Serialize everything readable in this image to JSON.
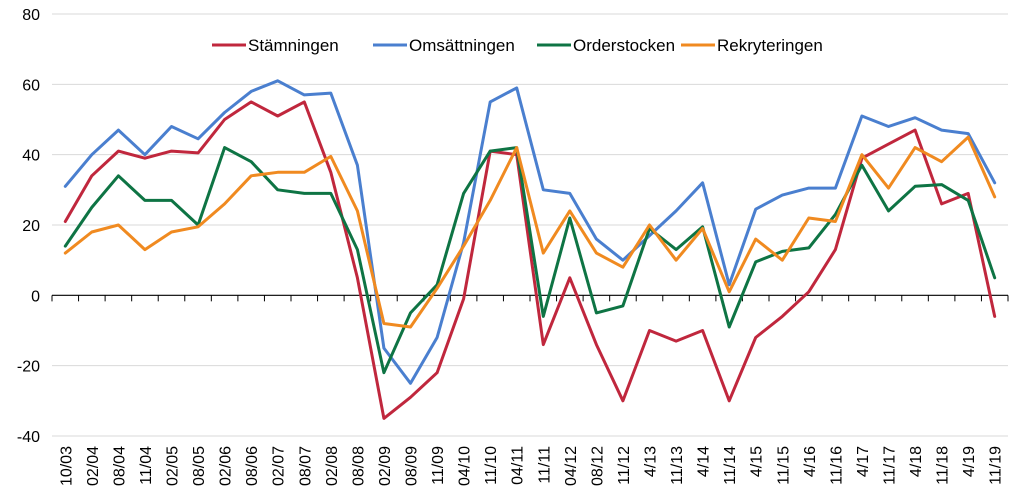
{
  "chart_data": {
    "type": "line",
    "title": "",
    "xlabel": "",
    "ylabel": "",
    "ylim": [
      -40,
      80
    ],
    "yticks": [
      -40,
      -20,
      0,
      20,
      40,
      60,
      80
    ],
    "grid": "horizontal",
    "legend_position": "top-center",
    "categories": [
      "10/03",
      "02/04",
      "08/04",
      "11/04",
      "02/05",
      "08/05",
      "02/06",
      "08/06",
      "02/07",
      "08/07",
      "02/08",
      "08/08",
      "02/09",
      "08/09",
      "11/09",
      "04/10",
      "11/10",
      "04/11",
      "11/11",
      "04/12",
      "08/12",
      "11/12",
      "4/13",
      "11/13",
      "4/14",
      "11/14",
      "4/15",
      "11/15",
      "4/16",
      "11/16",
      "4/17",
      "11/17",
      "4/18",
      "11/18",
      "4/19",
      "11/19"
    ],
    "series": [
      {
        "name": "Stämningen",
        "color": "#c0273d",
        "values": [
          21,
          34,
          41,
          39,
          41,
          40.5,
          50,
          55,
          51,
          55,
          35,
          5,
          -35,
          -29,
          -22,
          -1,
          41,
          40,
          -14,
          5,
          -14,
          -30,
          -10,
          -13,
          -10,
          -30,
          -12,
          -6,
          1,
          13,
          39,
          43,
          47,
          26,
          29,
          -6
        ]
      },
      {
        "name": "Omsättningen",
        "color": "#4a7fcf",
        "values": [
          31,
          40,
          47,
          40,
          48,
          44.5,
          52,
          58,
          61,
          57,
          57.5,
          37,
          -15,
          -25,
          -12,
          15,
          55,
          59,
          30,
          29,
          16,
          10,
          17,
          24,
          32,
          3,
          24.5,
          28.5,
          30.5,
          30.5,
          51,
          48,
          50.5,
          47,
          46,
          32
        ]
      },
      {
        "name": "Orderstocken",
        "color": "#0e7444",
        "values": [
          14,
          25,
          34,
          27,
          27,
          20,
          42,
          38,
          30,
          29,
          29,
          13,
          -22,
          -5,
          3,
          29,
          41,
          42,
          -6,
          22,
          -5,
          -3,
          19,
          13,
          19.5,
          -9,
          9.5,
          12.5,
          13.5,
          23,
          37,
          24,
          31,
          31.5,
          27,
          5
        ]
      },
      {
        "name": "Rekryteringen",
        "color": "#f08a20",
        "values": [
          12,
          18,
          20,
          13,
          18,
          19.5,
          26,
          34,
          35,
          35,
          39.5,
          24,
          -8,
          -9,
          2,
          14,
          27,
          42,
          12,
          24,
          12,
          8,
          20,
          10,
          19,
          1,
          16,
          10,
          22,
          21,
          40,
          30.5,
          42,
          38,
          45,
          28
        ]
      }
    ]
  }
}
